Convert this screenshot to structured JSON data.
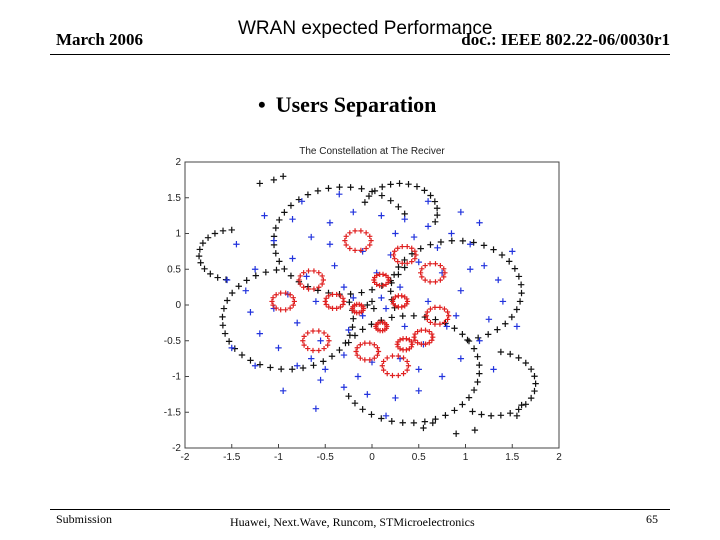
{
  "header": {
    "date": "March 2006",
    "title": "WRAN expected Performance",
    "doc_id": "doc.: IEEE 802.22-06/0030r1"
  },
  "bullet": {
    "symbol": "•",
    "text": "Users Separation"
  },
  "footer": {
    "left": "Submission",
    "center": "Huawei, Next.Wave, Runcom, STMicroelectronics",
    "page": "65"
  },
  "chart_data": {
    "type": "scatter",
    "title": "The Constellation at The Reciver",
    "xlim": [
      -2,
      2
    ],
    "ylim": [
      -2,
      2
    ],
    "xticks": [
      "-2",
      "-1.5",
      "-1",
      "-0.5",
      "0",
      "0.5",
      "1",
      "1.5",
      "2"
    ],
    "yticks": [
      "2",
      "1.5",
      "1",
      "0.5",
      "0",
      "-0.5",
      "-1",
      "-1.5",
      "-2"
    ],
    "marker": "+",
    "grid": false,
    "colors": {
      "black": "#111111",
      "blue": "#2233dd",
      "red": "#e02020"
    },
    "series": [
      {
        "color": "black",
        "shape": "arc-paths",
        "paths": [
          {
            "cx": -0.3,
            "cy": 0.9,
            "r": 0.75,
            "from": 30,
            "to": 330,
            "n": 34
          },
          {
            "cx": 0.4,
            "cy": -0.9,
            "r": 0.75,
            "from": -150,
            "to": 150,
            "n": 34
          },
          {
            "cx": -0.9,
            "cy": -0.2,
            "r": 0.7,
            "from": 100,
            "to": 380,
            "n": 30
          },
          {
            "cx": 0.9,
            "cy": 0.2,
            "r": 0.7,
            "from": -80,
            "to": 200,
            "n": 30
          },
          {
            "cx": 1.3,
            "cy": -1.1,
            "r": 0.45,
            "from": -120,
            "to": 80,
            "n": 16
          },
          {
            "cx": -1.5,
            "cy": 0.7,
            "r": 0.35,
            "from": 90,
            "to": 260,
            "n": 12
          },
          {
            "cx": 0.3,
            "cy": 1.3,
            "r": 0.4,
            "from": -20,
            "to": 160,
            "n": 14
          }
        ],
        "points": [
          [
            -1.2,
            1.7
          ],
          [
            -1.05,
            1.75
          ],
          [
            -0.95,
            1.8
          ],
          [
            1.1,
            -1.75
          ],
          [
            0.9,
            -1.8
          ],
          [
            0.65,
            -1.65
          ],
          [
            0.55,
            -1.72
          ],
          [
            0.0,
            0.05
          ],
          [
            0.02,
            -0.05
          ],
          [
            -0.05,
            0.0
          ],
          [
            1.55,
            -1.55
          ],
          [
            1.6,
            -1.4
          ]
        ]
      },
      {
        "color": "blue",
        "shape": "scatter",
        "points": [
          [
            -1.05,
            0.9
          ],
          [
            -0.85,
            1.2
          ],
          [
            -0.65,
            0.95
          ],
          [
            -0.45,
            1.15
          ],
          [
            -0.2,
            1.3
          ],
          [
            0.1,
            1.25
          ],
          [
            0.35,
            1.2
          ],
          [
            0.6,
            1.1
          ],
          [
            0.85,
            1.0
          ],
          [
            1.05,
            0.85
          ],
          [
            1.2,
            0.55
          ],
          [
            1.35,
            0.35
          ],
          [
            1.4,
            0.05
          ],
          [
            1.25,
            -0.2
          ],
          [
            1.15,
            -0.5
          ],
          [
            0.95,
            -0.75
          ],
          [
            0.75,
            -1.0
          ],
          [
            0.5,
            -1.2
          ],
          [
            0.25,
            -1.3
          ],
          [
            -0.05,
            -1.25
          ],
          [
            -0.3,
            -1.15
          ],
          [
            -0.55,
            -1.05
          ],
          [
            -0.8,
            -0.85
          ],
          [
            -1.0,
            -0.6
          ],
          [
            -1.2,
            -0.4
          ],
          [
            -1.3,
            -0.1
          ],
          [
            -1.35,
            0.2
          ],
          [
            -1.25,
            0.5
          ],
          [
            -0.7,
            0.4
          ],
          [
            -0.4,
            0.55
          ],
          [
            -0.1,
            0.75
          ],
          [
            0.2,
            0.7
          ],
          [
            0.5,
            0.6
          ],
          [
            0.75,
            0.45
          ],
          [
            0.95,
            0.2
          ],
          [
            0.8,
            -0.3
          ],
          [
            0.55,
            -0.55
          ],
          [
            0.3,
            -0.75
          ],
          [
            0.0,
            -0.8
          ],
          [
            -0.3,
            -0.7
          ],
          [
            -0.55,
            -0.5
          ],
          [
            -0.8,
            -0.25
          ],
          [
            -0.9,
            0.15
          ],
          [
            -0.6,
            0.05
          ],
          [
            -0.3,
            0.25
          ],
          [
            0.3,
            0.25
          ],
          [
            0.6,
            0.05
          ],
          [
            0.35,
            -0.3
          ],
          [
            -0.25,
            -0.35
          ],
          [
            0.05,
            0.45
          ],
          [
            -1.5,
            -0.6
          ],
          [
            -1.45,
            0.85
          ],
          [
            1.5,
            0.75
          ],
          [
            1.55,
            -0.3
          ],
          [
            -0.95,
            -1.2
          ],
          [
            -0.6,
            -1.45
          ],
          [
            0.95,
            1.3
          ],
          [
            0.6,
            1.45
          ],
          [
            -0.35,
            1.55
          ],
          [
            -1.15,
            1.25
          ],
          [
            1.3,
            -0.9
          ],
          [
            -1.55,
            0.35
          ],
          [
            0.15,
            -1.55
          ],
          [
            -0.75,
            1.45
          ],
          [
            1.15,
            1.15
          ],
          [
            -1.25,
            -0.85
          ],
          [
            0.45,
            0.95
          ],
          [
            -0.5,
            -0.9
          ],
          [
            0.9,
            -0.15
          ],
          [
            -0.85,
            0.65
          ],
          [
            0.25,
            1.0
          ],
          [
            -0.15,
            -1.0
          ],
          [
            0.7,
            0.8
          ],
          [
            -0.65,
            -0.75
          ],
          [
            1.05,
            0.5
          ],
          [
            -1.05,
            -0.05
          ],
          [
            0.5,
            -0.9
          ],
          [
            -0.45,
            0.85
          ],
          [
            0.1,
            0.1
          ],
          [
            -0.1,
            -0.15
          ],
          [
            0.15,
            -0.05
          ],
          [
            -0.2,
            0.1
          ]
        ]
      },
      {
        "color": "red",
        "shape": "ring-clusters",
        "rings": [
          {
            "x": -0.15,
            "y": 0.9,
            "r": 0.14
          },
          {
            "x": 0.35,
            "y": 0.7,
            "r": 0.12
          },
          {
            "x": 0.65,
            "y": 0.45,
            "r": 0.13
          },
          {
            "x": -0.65,
            "y": 0.35,
            "r": 0.13
          },
          {
            "x": -0.4,
            "y": 0.05,
            "r": 0.1
          },
          {
            "x": 0.1,
            "y": 0.35,
            "r": 0.08
          },
          {
            "x": 0.3,
            "y": 0.05,
            "r": 0.08
          },
          {
            "x": -0.15,
            "y": -0.05,
            "r": 0.06
          },
          {
            "x": 0.7,
            "y": -0.15,
            "r": 0.12
          },
          {
            "x": 0.55,
            "y": -0.45,
            "r": 0.1
          },
          {
            "x": 0.1,
            "y": -0.3,
            "r": 0.06
          },
          {
            "x": -0.6,
            "y": -0.5,
            "r": 0.14
          },
          {
            "x": -0.05,
            "y": -0.65,
            "r": 0.12
          },
          {
            "x": 0.25,
            "y": -0.85,
            "r": 0.14
          },
          {
            "x": 0.35,
            "y": -0.55,
            "r": 0.08
          },
          {
            "x": -0.95,
            "y": 0.05,
            "r": 0.12
          }
        ]
      }
    ]
  }
}
